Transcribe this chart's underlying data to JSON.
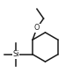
{
  "bg_color": "#ffffff",
  "line_color": "#1a1a1a",
  "line_width": 1.1,
  "font_size": 5.2,
  "Si_label": "Si",
  "O_label": "O",
  "fig_width": 0.83,
  "fig_height": 0.92
}
